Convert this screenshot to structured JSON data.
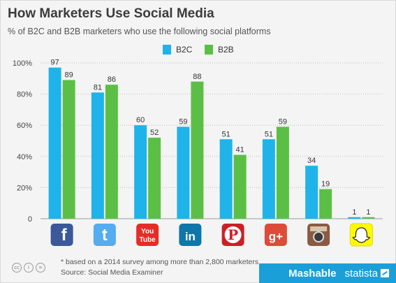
{
  "header": {
    "title": "How Marketers Use Social Media",
    "subtitle": "% of B2C and B2B marketers who use the following social platforms"
  },
  "colors": {
    "b2c": "#1fb3ea",
    "b2b": "#5cbf45",
    "grid": "#bdbdbd",
    "label": "#333333"
  },
  "chart_data": {
    "type": "bar",
    "title": "How Marketers Use Social Media",
    "subtitle": "% of B2C and B2B marketers who use the following social platforms",
    "categories": [
      "Facebook",
      "Twitter",
      "YouTube",
      "LinkedIn",
      "Pinterest",
      "Google+",
      "Instagram",
      "Snapchat"
    ],
    "series": [
      {
        "name": "B2C",
        "values": [
          97,
          81,
          60,
          59,
          51,
          51,
          34,
          1
        ]
      },
      {
        "name": "B2B",
        "values": [
          89,
          86,
          52,
          88,
          41,
          59,
          19,
          1
        ]
      }
    ],
    "ylim": [
      0,
      100
    ],
    "yticks": [
      "0",
      "20%",
      "40%",
      "60%",
      "80%",
      "100%"
    ],
    "ytick_values": [
      0,
      20,
      40,
      60,
      80,
      100
    ],
    "grid": true,
    "legend_position": "top-center"
  },
  "platform_icons": [
    {
      "name": "facebook-icon",
      "glyph": "f",
      "bg": "#3b5998"
    },
    {
      "name": "twitter-icon",
      "glyph": "t",
      "bg": "#55acee"
    },
    {
      "name": "youtube-icon",
      "glyph": "You Tube",
      "bg": "#e52d27"
    },
    {
      "name": "linkedin-icon",
      "glyph": "in",
      "bg": "#0e76a8"
    },
    {
      "name": "pinterest-icon",
      "glyph": "P",
      "bg": "#cb2027"
    },
    {
      "name": "google-plus-icon",
      "glyph": "g+",
      "bg": "#dd4b39"
    },
    {
      "name": "instagram-icon",
      "glyph": "",
      "bg": "#8a5a44"
    },
    {
      "name": "snapchat-icon",
      "glyph": "",
      "bg": "#fffc00"
    }
  ],
  "footer": {
    "note": "* based on a 2014 survey among more than 2,800 marketers",
    "source": "Source: Social Media Examiner",
    "cc_icons": [
      "cc",
      "i",
      "="
    ],
    "brand_left": "Mashable",
    "brand_right": "statista"
  }
}
